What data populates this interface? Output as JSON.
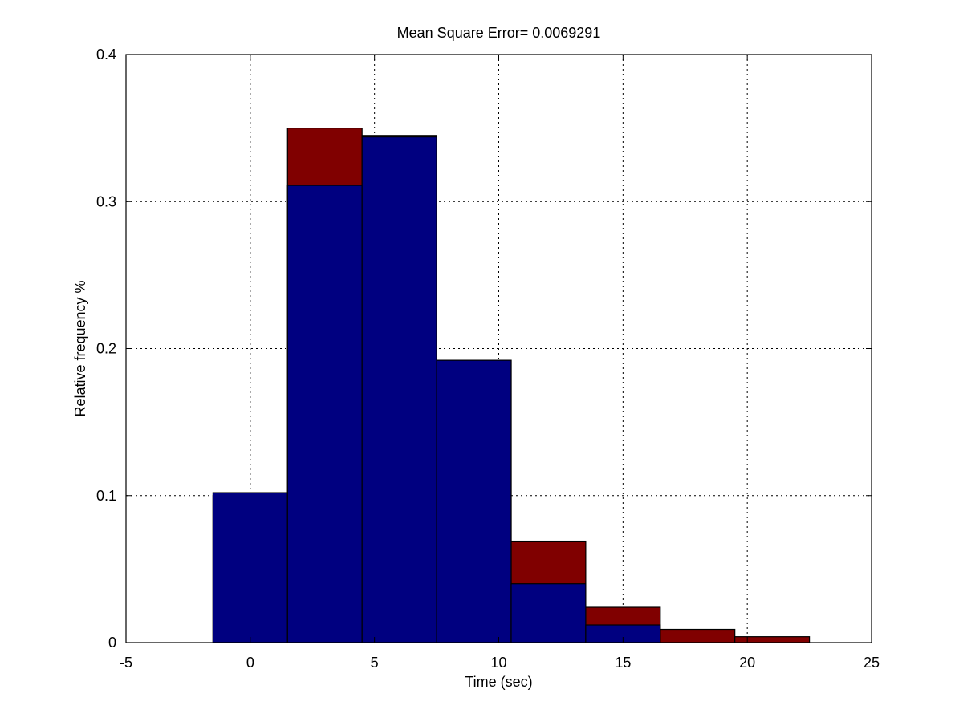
{
  "chart_data": {
    "type": "bar",
    "title": "Mean Square Error= 0.0069291",
    "xlabel": "Time (sec)",
    "ylabel": "Relative frequency %",
    "xlim": [
      -5,
      25
    ],
    "ylim": [
      0,
      0.4
    ],
    "xticks": [
      -5,
      0,
      5,
      10,
      15,
      20,
      25
    ],
    "xtick_labels": [
      "-5",
      "0",
      "5",
      "10",
      "15",
      "20",
      "25"
    ],
    "yticks": [
      0,
      0.1,
      0.2,
      0.3,
      0.4
    ],
    "ytick_labels": [
      "0",
      "0.1",
      "0.2",
      "0.3",
      "0.4"
    ],
    "grid": true,
    "grid_style": "dotted",
    "bin_width": 3,
    "bin_centers": [
      0,
      3,
      6,
      9,
      12,
      15,
      18,
      21
    ],
    "series": [
      {
        "color": "#800000",
        "values": [
          0.1,
          0.35,
          0.345,
          0.192,
          0.069,
          0.024,
          0.009,
          0.004
        ]
      },
      {
        "color": "#000080",
        "values": [
          0.102,
          0.311,
          0.344,
          0.192,
          0.04,
          0.012,
          0,
          0
        ]
      }
    ]
  }
}
